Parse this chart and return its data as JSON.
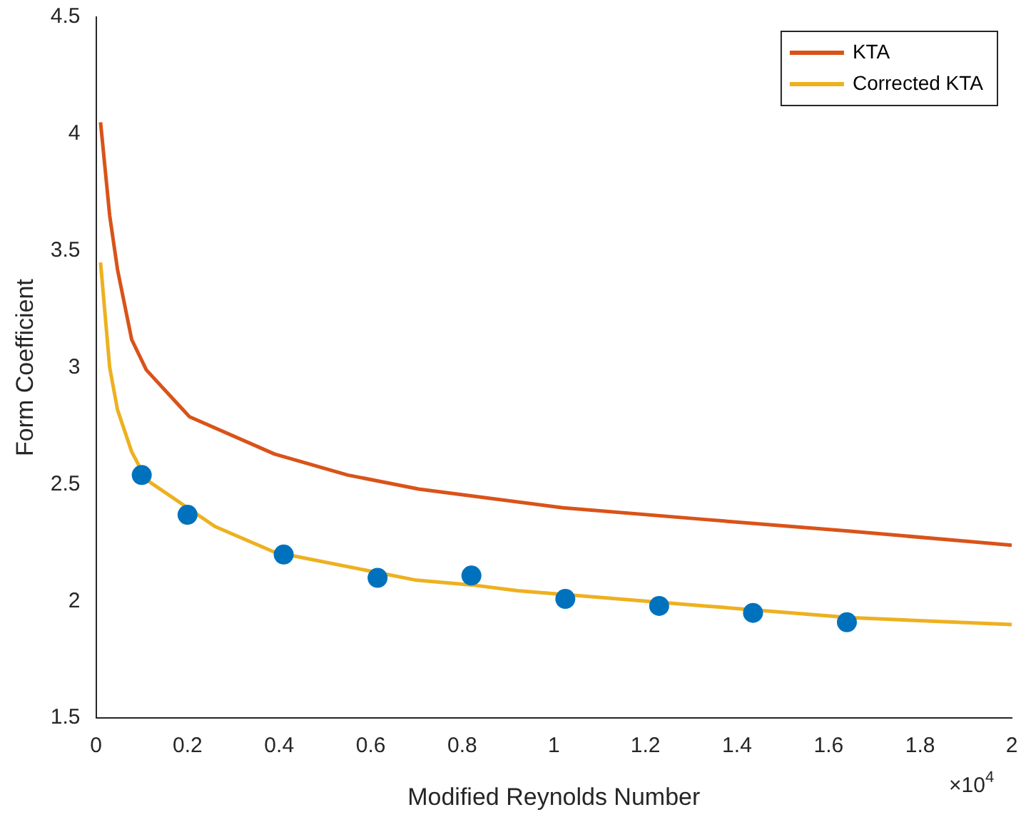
{
  "chart_data": {
    "type": "line",
    "xlabel": "Modified Reynolds Number",
    "ylabel": "Form Coefficient",
    "xlim": [
      0,
      2
    ],
    "xticks": [
      0,
      0.2,
      0.4,
      0.6,
      0.8,
      1,
      1.2,
      1.4,
      1.6,
      1.8,
      2
    ],
    "ylim": [
      1.5,
      4.5
    ],
    "yticks": [
      1.5,
      2,
      2.5,
      3,
      3.5,
      4,
      4.5
    ],
    "annotations": [
      "×10$^{4}$"
    ],
    "legend": "top right",
    "grid": false,
    "series": [
      {
        "type": "scatter",
        "marker": "circle",
        "color": "#0072bd",
        "x": [
          0.1,
          0.2,
          0.41,
          0.615,
          0.82,
          1.025,
          1.23,
          1.435,
          1.64
        ],
        "values": [
          2.54,
          2.37,
          2.2,
          2.1,
          2.11,
          2.01,
          1.98,
          1.95,
          1.91
        ]
      },
      {
        "name": "KTA",
        "color": "#d95319",
        "x": [
          0.01,
          0.03,
          0.047,
          0.078,
          0.11,
          0.204,
          0.39,
          0.55,
          0.705,
          1.02,
          1.33,
          1.646,
          2
        ],
        "values": [
          4.05,
          3.65,
          3.42,
          3.12,
          2.99,
          2.79,
          2.63,
          2.54,
          2.48,
          2.4,
          2.35,
          2.3,
          2.24
        ]
      },
      {
        "name": "Corrected KTA",
        "color": "#edb120",
        "x": [
          0.01,
          0.03,
          0.047,
          0.078,
          0.11,
          0.26,
          0.39,
          0.7,
          0.82,
          0.92,
          1.33,
          1.646,
          2
        ],
        "values": [
          3.45,
          3.0,
          2.82,
          2.64,
          2.52,
          2.32,
          2.21,
          2.09,
          2.07,
          2.045,
          1.98,
          1.93,
          1.9
        ]
      }
    ]
  }
}
